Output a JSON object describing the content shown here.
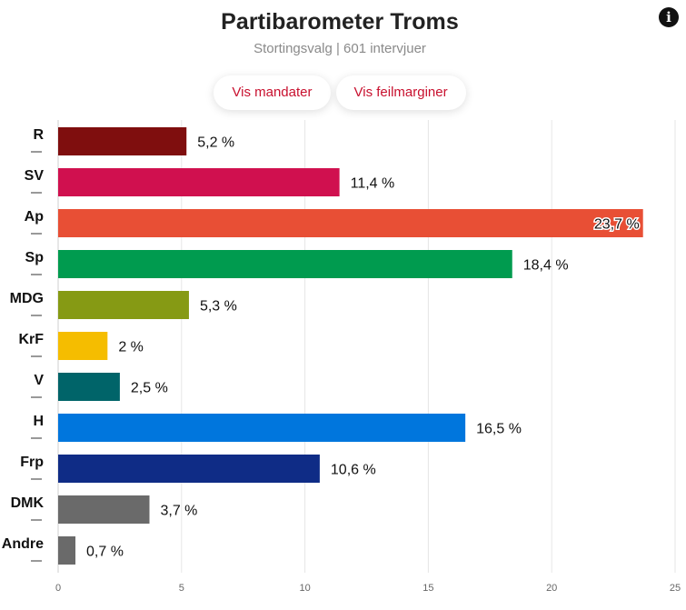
{
  "header": {
    "title": "Partibarometer Troms",
    "subtitle": "Stortingsvalg | 601 intervjuer",
    "info_icon": "info-icon"
  },
  "buttons": {
    "mandates_label": "Vis mandater",
    "margins_label": "Vis feilmarginer",
    "text_color": "#c8102e"
  },
  "chart_data": {
    "type": "bar",
    "orientation": "horizontal",
    "categories": [
      "R",
      "SV",
      "Ap",
      "Sp",
      "MDG",
      "KrF",
      "V",
      "H",
      "Frp",
      "DMK",
      "Andre"
    ],
    "values": [
      5.2,
      11.4,
      23.7,
      18.4,
      5.3,
      2,
      2.5,
      16.5,
      10.6,
      3.7,
      0.7
    ],
    "value_labels": [
      "5,2 %",
      "11,4 %",
      "23,7 %",
      "18,4 %",
      "5,3 %",
      "2 %",
      "2,5 %",
      "16,5 %",
      "10,6 %",
      "3,7 %",
      "0,7 %"
    ],
    "colors": [
      "#7f0e0e",
      "#d0104f",
      "#e84f35",
      "#009b4f",
      "#869a14",
      "#f5bd00",
      "#006469",
      "#0076dd",
      "#0f2c86",
      "#6a6a6a",
      "#6a6a6a"
    ],
    "x_ticks": [
      "0",
      "5",
      "10",
      "15",
      "20",
      "25"
    ],
    "xlim": [
      0,
      25
    ],
    "grid": true,
    "title": "Partibarometer Troms",
    "subtitle": "Stortingsvalg | 601 intervjuer",
    "xlabel": "",
    "ylabel": ""
  }
}
